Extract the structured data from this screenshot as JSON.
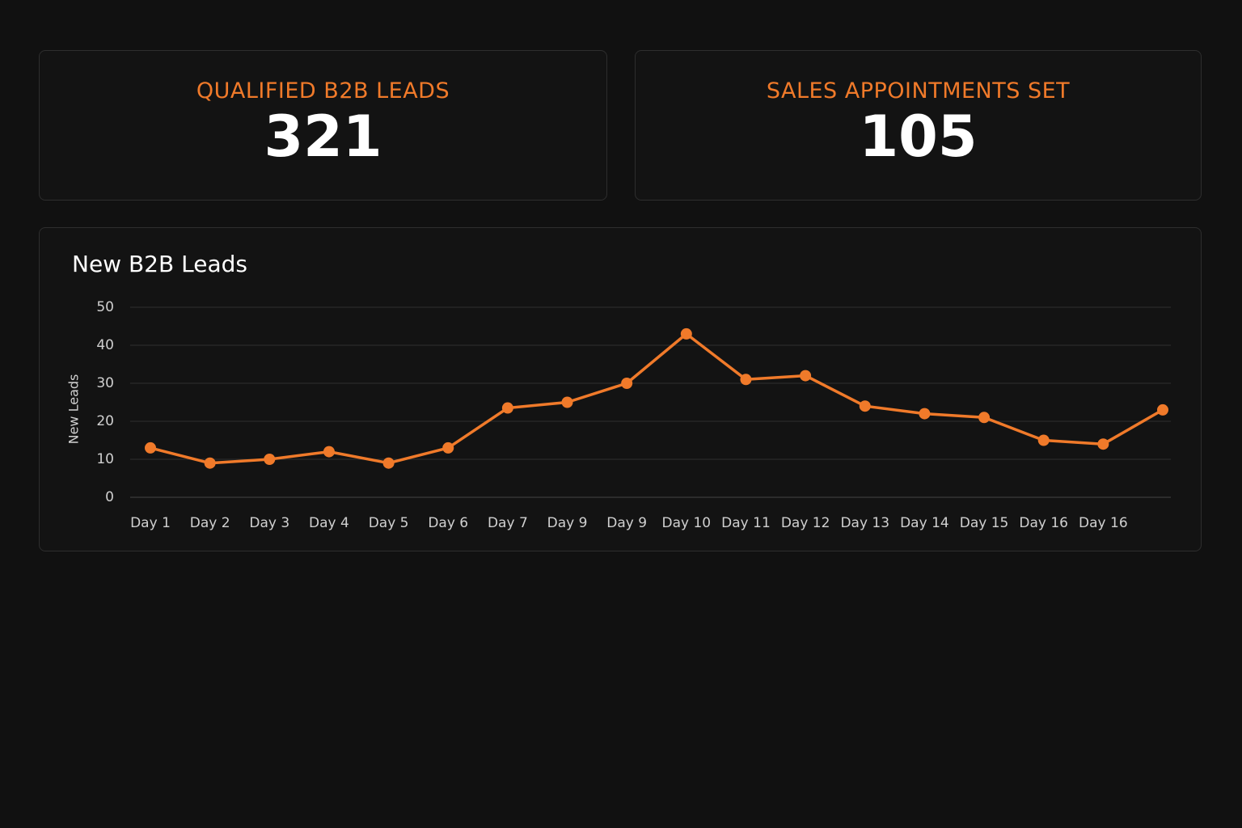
{
  "cards": [
    {
      "label": "QUALIFIED B2B LEADS",
      "value": "321"
    },
    {
      "label": "SALES APPOINTMENTS SET",
      "value": "105"
    }
  ],
  "chart_data": {
    "type": "line",
    "title": "New B2B Leads",
    "y_label": "New Leads",
    "categories": [
      "Day 1",
      "Day 2",
      "Day 3",
      "Day 4",
      "Day 5",
      "Day 6",
      "Day 7",
      "Day 9",
      "Day 9",
      "Day 10",
      "Day 11",
      "Day 12",
      "Day 13",
      "Day 14",
      "Day 15",
      "Day 16",
      "Day 16",
      null
    ],
    "series": [
      {
        "name": "New Leads",
        "color": "#f07a2a",
        "values": [
          13,
          9,
          10,
          12,
          9,
          13,
          23.5,
          25,
          30,
          43,
          31,
          32,
          24,
          22,
          21,
          15,
          14,
          23
        ]
      }
    ],
    "ylim": [
      0,
      50
    ],
    "yticks": [
      0,
      10,
      20,
      30,
      40,
      50
    ],
    "grid": true
  }
}
